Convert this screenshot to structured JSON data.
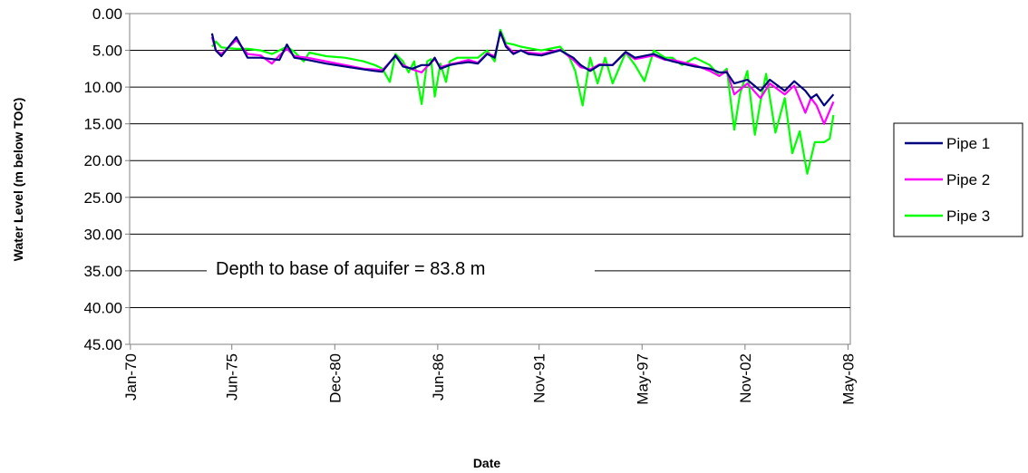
{
  "chart_data": {
    "type": "line",
    "title": "",
    "xlabel": "Date",
    "ylabel": "Water Level (m below TOC)",
    "y_inverted": true,
    "ylim": [
      0,
      45
    ],
    "y_ticks": [
      "0.00",
      "5.00",
      "10.00",
      "15.00",
      "20.00",
      "25.00",
      "30.00",
      "35.00",
      "40.00",
      "45.00"
    ],
    "x_ticks": [
      "Jan-70",
      "Jun-75",
      "Dec-80",
      "Jun-86",
      "Nov-91",
      "May-97",
      "Nov-02",
      "May-08"
    ],
    "grid": "horizontal",
    "legend_position": "right",
    "annotation": "Depth to base of aquifer = 83.8 m",
    "series": [
      {
        "name": "Pipe 1",
        "color": "#000080",
        "x": [
          1974.4,
          1974.6,
          1974.9,
          1975.7,
          1976.3,
          1977.0,
          1978.0,
          1978.4,
          1978.8,
          1979.5,
          1980.5,
          1981.5,
          1982.5,
          1983.1,
          1983.5,
          1984.2,
          1984.6,
          1985.1,
          1985.6,
          1986.0,
          1986.3,
          1986.6,
          1987.1,
          1987.5,
          1988.1,
          1988.6,
          1989.1,
          1989.5,
          1989.8,
          1990.1,
          1990.5,
          1990.9,
          1991.3,
          1992.0,
          1993.0,
          1993.7,
          1994.1,
          1994.6,
          1995.1,
          1995.8,
          1996.5,
          1997.0,
          1998.0,
          1998.6,
          1999.0,
          1999.5,
          2000.2,
          2001.0,
          2001.5,
          2001.9,
          2002.3,
          2003.0,
          2003.7,
          2004.2,
          2005.0,
          2005.5,
          2006.1,
          2006.4,
          2006.7,
          2007.1,
          2007.6
        ],
        "values": [
          2.7,
          5.0,
          5.8,
          3.2,
          6.0,
          6.0,
          6.3,
          4.2,
          6.0,
          6.3,
          6.8,
          7.2,
          7.6,
          7.8,
          7.9,
          5.7,
          7.2,
          7.5,
          7.0,
          7.0,
          6.0,
          7.5,
          7.0,
          6.8,
          6.6,
          6.8,
          5.5,
          6.0,
          2.5,
          4.5,
          5.5,
          5.0,
          5.5,
          5.7,
          5.0,
          6.0,
          7.0,
          7.8,
          7.0,
          7.0,
          5.2,
          6.0,
          5.5,
          6.2,
          6.5,
          6.8,
          7.2,
          7.5,
          8.0,
          8.0,
          9.5,
          9.0,
          10.5,
          9.0,
          10.5,
          9.2,
          10.5,
          11.5,
          11.0,
          12.5,
          11.0
        ]
      },
      {
        "name": "Pipe 2",
        "color": "#FF00FF",
        "x": [
          1974.4,
          1974.6,
          1974.9,
          1975.7,
          1976.3,
          1977.0,
          1977.6,
          1978.0,
          1978.4,
          1978.8,
          1979.5,
          1980.5,
          1981.5,
          1982.5,
          1983.1,
          1983.5,
          1984.2,
          1984.6,
          1985.1,
          1985.6,
          1986.0,
          1986.3,
          1986.6,
          1987.1,
          1987.5,
          1988.1,
          1988.6,
          1989.1,
          1989.5,
          1989.8,
          1990.1,
          1990.5,
          1990.9,
          1991.3,
          1992.0,
          1993.0,
          1993.7,
          1994.1,
          1994.6,
          1995.1,
          1995.8,
          1996.5,
          1997.0,
          1998.0,
          1998.6,
          1999.0,
          1999.5,
          2000.2,
          2001.0,
          2001.5,
          2001.9,
          2002.3,
          2003.0,
          2003.7,
          2004.2,
          2005.0,
          2005.5,
          2006.1,
          2006.4,
          2006.7,
          2007.1,
          2007.6
        ],
        "values": [
          3.2,
          5.0,
          5.5,
          3.6,
          5.5,
          5.7,
          6.8,
          5.7,
          4.8,
          5.8,
          6.0,
          6.5,
          7.0,
          7.5,
          7.6,
          7.7,
          5.8,
          7.0,
          7.6,
          8.0,
          6.9,
          6.2,
          7.3,
          6.9,
          6.7,
          6.3,
          6.7,
          5.4,
          5.8,
          2.6,
          4.3,
          5.3,
          5.0,
          5.3,
          5.5,
          4.9,
          6.3,
          7.3,
          7.6,
          6.9,
          7.0,
          5.3,
          6.2,
          5.7,
          6.3,
          6.3,
          6.6,
          7.0,
          7.8,
          8.5,
          7.8,
          11.0,
          9.5,
          11.5,
          9.5,
          11.0,
          9.8,
          13.5,
          11.5,
          12.5,
          15.0,
          12.0
        ]
      },
      {
        "name": "Pipe 3",
        "color": "#00FF00",
        "x": [
          1974.4,
          1974.6,
          1974.9,
          1975.7,
          1976.3,
          1977.0,
          1977.6,
          1978.0,
          1978.4,
          1978.8,
          1979.3,
          1979.6,
          1980.5,
          1981.5,
          1982.5,
          1983.1,
          1983.5,
          1983.9,
          1984.2,
          1984.6,
          1984.9,
          1985.2,
          1985.6,
          1985.9,
          1986.1,
          1986.3,
          1986.6,
          1986.9,
          1987.1,
          1987.5,
          1988.1,
          1988.6,
          1989.1,
          1989.5,
          1989.8,
          1990.1,
          1990.5,
          1990.9,
          1991.3,
          1992.0,
          1993.0,
          1993.5,
          1993.8,
          1994.2,
          1994.6,
          1995.0,
          1995.4,
          1995.8,
          1996.5,
          1997.0,
          1997.5,
          1998.0,
          1998.6,
          1999.0,
          1999.5,
          2000.2,
          2001.0,
          2001.5,
          2001.9,
          2002.3,
          2002.6,
          2003.0,
          2003.4,
          2003.7,
          2004.0,
          2004.5,
          2005.0,
          2005.4,
          2005.8,
          2006.2,
          2006.6,
          2006.9,
          2007.1,
          2007.4,
          2007.6
        ],
        "values": [
          4.5,
          3.8,
          4.6,
          4.8,
          4.8,
          5.0,
          5.5,
          5.0,
          4.5,
          5.2,
          6.5,
          5.3,
          5.8,
          6.0,
          6.5,
          7.0,
          7.5,
          9.3,
          5.5,
          6.5,
          8.0,
          6.5,
          12.3,
          6.5,
          6.2,
          11.3,
          6.8,
          9.3,
          6.5,
          6.0,
          6.0,
          6.0,
          5.0,
          6.5,
          2.2,
          4.0,
          4.2,
          4.5,
          4.7,
          5.0,
          4.5,
          6.0,
          7.8,
          12.5,
          6.0,
          9.5,
          6.0,
          9.5,
          5.3,
          7.0,
          9.2,
          5.0,
          6.0,
          6.0,
          7.0,
          6.0,
          7.0,
          8.5,
          7.5,
          15.8,
          11.0,
          7.8,
          16.5,
          12.0,
          8.2,
          16.2,
          11.5,
          19.0,
          16.0,
          21.8,
          17.5,
          17.5,
          17.5,
          17.0,
          13.8
        ]
      }
    ]
  }
}
